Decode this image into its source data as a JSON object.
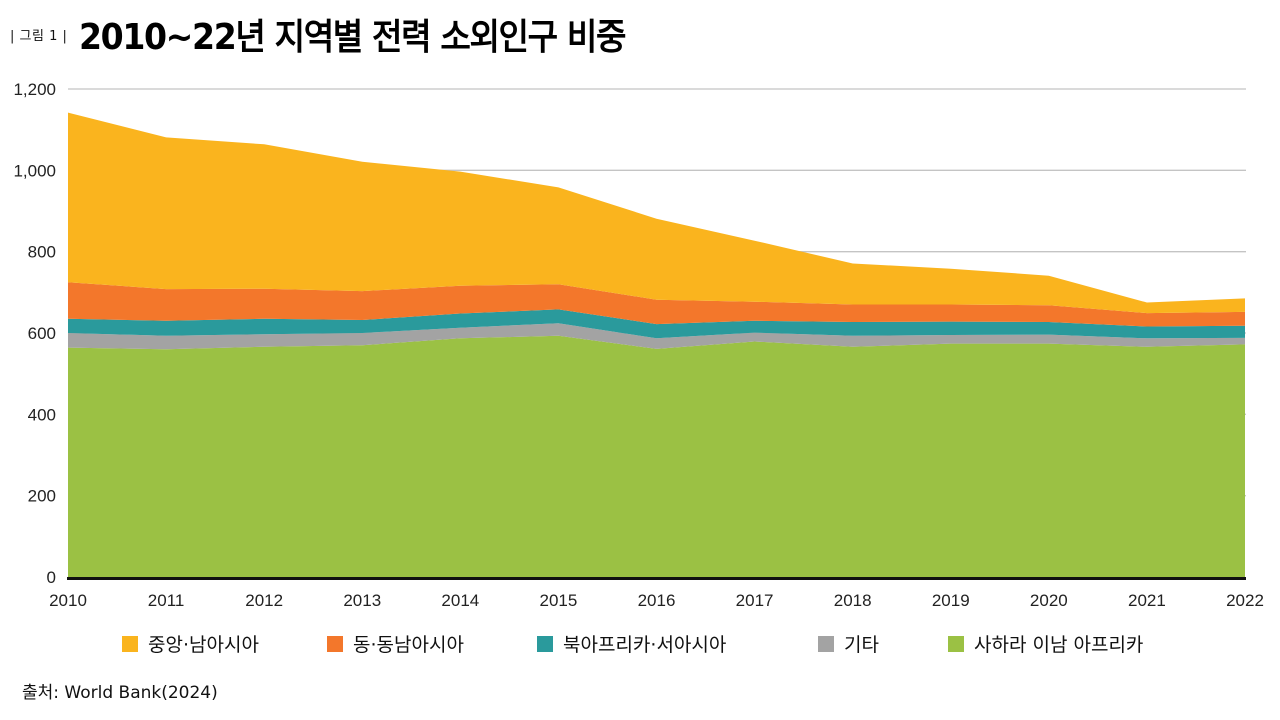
{
  "header": {
    "figure_label": "| 그림 1 |",
    "title": "2010~22년 지역별 전력 소외인구 비중"
  },
  "source": "출처: World Bank(2024)",
  "chart_data": {
    "type": "area",
    "stacked": true,
    "title": "2010~22년 지역별 전력 소외인구 비중",
    "xlabel": "",
    "ylabel": "",
    "x": [
      "2010",
      "2011",
      "2012",
      "2013",
      "2014",
      "2015",
      "2016",
      "2017",
      "2018",
      "2019",
      "2020",
      "2021",
      "2022"
    ],
    "ylim": [
      0,
      1200
    ],
    "yticks": [
      0,
      200,
      400,
      600,
      800,
      1000,
      1200
    ],
    "ytick_labels": [
      "0",
      "200",
      "400",
      "600",
      "800",
      "1,000",
      "1,200"
    ],
    "grid": true,
    "legend_position": "bottom",
    "series": [
      {
        "name": "사하라 이남 아프리카",
        "color": "#9BC144",
        "values": [
          564,
          560,
          566,
          570,
          587,
          593,
          561,
          579,
          566,
          574,
          574,
          566,
          572
        ]
      },
      {
        "name": "기타",
        "color": "#A3A3A3",
        "values": [
          36,
          33,
          31,
          30,
          26,
          31,
          26,
          22,
          27,
          21,
          22,
          21,
          16
        ]
      },
      {
        "name": "북아프리카·서아시아",
        "color": "#2A9A9C",
        "values": [
          35,
          37,
          38,
          32,
          35,
          34,
          35,
          29,
          34,
          33,
          31,
          29,
          30
        ]
      },
      {
        "name": "동·동남아시아",
        "color": "#F3772B",
        "values": [
          90,
          78,
          74,
          71,
          68,
          62,
          60,
          47,
          43,
          42,
          41,
          33,
          34
        ]
      },
      {
        "name": "중앙·남아시아",
        "color": "#FAB41E",
        "values": [
          417,
          373,
          355,
          318,
          281,
          238,
          199,
          150,
          101,
          88,
          73,
          26,
          33
        ]
      }
    ],
    "legend_order": [
      "중앙·남아시아",
      "동·동남아시아",
      "북아프리카·서아시아",
      "기타",
      "사하라 이남 아프리카"
    ]
  }
}
